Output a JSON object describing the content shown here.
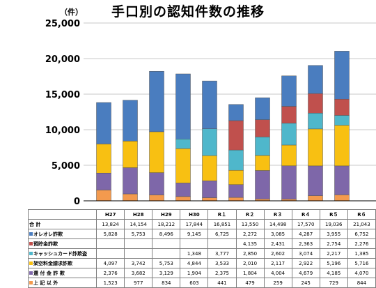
{
  "title": "手口別の認知件数の推移",
  "unit_label": "（件）",
  "chart_data": {
    "type": "bar",
    "stacked": true,
    "title": "手口別の認知件数の推移",
    "categories": [
      "H27",
      "H28",
      "H29",
      "H30",
      "R１",
      "R２",
      "R３",
      "R４",
      "R５",
      "R６"
    ],
    "ylim": [
      0,
      25000
    ],
    "yticks": [
      "0",
      "5,000",
      "10,000",
      "15,000",
      "20,000",
      "25,000"
    ],
    "ytick_values": [
      0,
      5000,
      10000,
      15000,
      20000,
      25000
    ],
    "grid": true,
    "series": [
      {
        "name": "上 記 以 外",
        "color": "#F39A4E",
        "values": [
          1523,
          977,
          834,
          603,
          441,
          479,
          259,
          245,
          729,
          844
        ]
      },
      {
        "name": "還 付 金 詐 欺",
        "color": "#7E67A9",
        "values": [
          2376,
          3682,
          3129,
          1904,
          2375,
          1804,
          4004,
          4679,
          4185,
          4070
        ]
      },
      {
        "name": "架空料金請求詐欺",
        "color": "#F8C012",
        "values": [
          4097,
          3742,
          5753,
          4844,
          3533,
          2010,
          2117,
          2922,
          5196,
          5716
        ]
      },
      {
        "name": "キャッシュカード詐欺盗",
        "color": "#4FB7CB",
        "values": [
          null,
          null,
          null,
          1348,
          3777,
          2850,
          2602,
          3074,
          2217,
          1385
        ]
      },
      {
        "name": "預貯金詐欺",
        "color": "#C0504D",
        "values": [
          null,
          null,
          null,
          null,
          null,
          4135,
          2431,
          2363,
          2754,
          2276
        ]
      },
      {
        "name": "オレオレ詐欺",
        "color": "#4A7DBF",
        "values": [
          5828,
          5753,
          8496,
          9145,
          6725,
          2272,
          3085,
          4287,
          3955,
          6752
        ]
      }
    ],
    "totals": [
      13824,
      14154,
      18212,
      17844,
      16851,
      13550,
      14498,
      17570,
      19036,
      21043
    ]
  },
  "table": {
    "total_label": "合 計",
    "total_values": [
      "13,824",
      "14,154",
      "18,212",
      "17,844",
      "16,851",
      "13,550",
      "14,498",
      "17,570",
      "19,036",
      "21,043"
    ],
    "rows": [
      {
        "label": "オレオレ詐欺",
        "color": "#4A7DBF",
        "values": [
          "5,828",
          "5,753",
          "8,496",
          "9,145",
          "6,725",
          "2,272",
          "3,085",
          "4,287",
          "3,955",
          "6,752"
        ]
      },
      {
        "label": "預貯金詐欺",
        "color": "#C0504D",
        "values": [
          "",
          "",
          "",
          "",
          "",
          "4,135",
          "2,431",
          "2,363",
          "2,754",
          "2,276"
        ]
      },
      {
        "label": "キャッシュカード詐欺盗",
        "color": "#4FB7CB",
        "values": [
          "",
          "",
          "",
          "1,348",
          "3,777",
          "2,850",
          "2,602",
          "3,074",
          "2,217",
          "1,385"
        ]
      },
      {
        "label": "架空料金請求詐欺",
        "color": "#F8C012",
        "values": [
          "4,097",
          "3,742",
          "5,753",
          "4,844",
          "3,533",
          "2,010",
          "2,117",
          "2,922",
          "5,196",
          "5,716"
        ]
      },
      {
        "label": "還 付 金 詐 欺",
        "color": "#7E67A9",
        "values": [
          "2,376",
          "3,682",
          "3,129",
          "1,904",
          "2,375",
          "1,804",
          "4,004",
          "4,679",
          "4,185",
          "4,070"
        ]
      },
      {
        "label": "上 記 以 外",
        "color": "#F39A4E",
        "values": [
          "1,523",
          "977",
          "834",
          "603",
          "441",
          "479",
          "259",
          "245",
          "729",
          "844"
        ]
      }
    ]
  }
}
